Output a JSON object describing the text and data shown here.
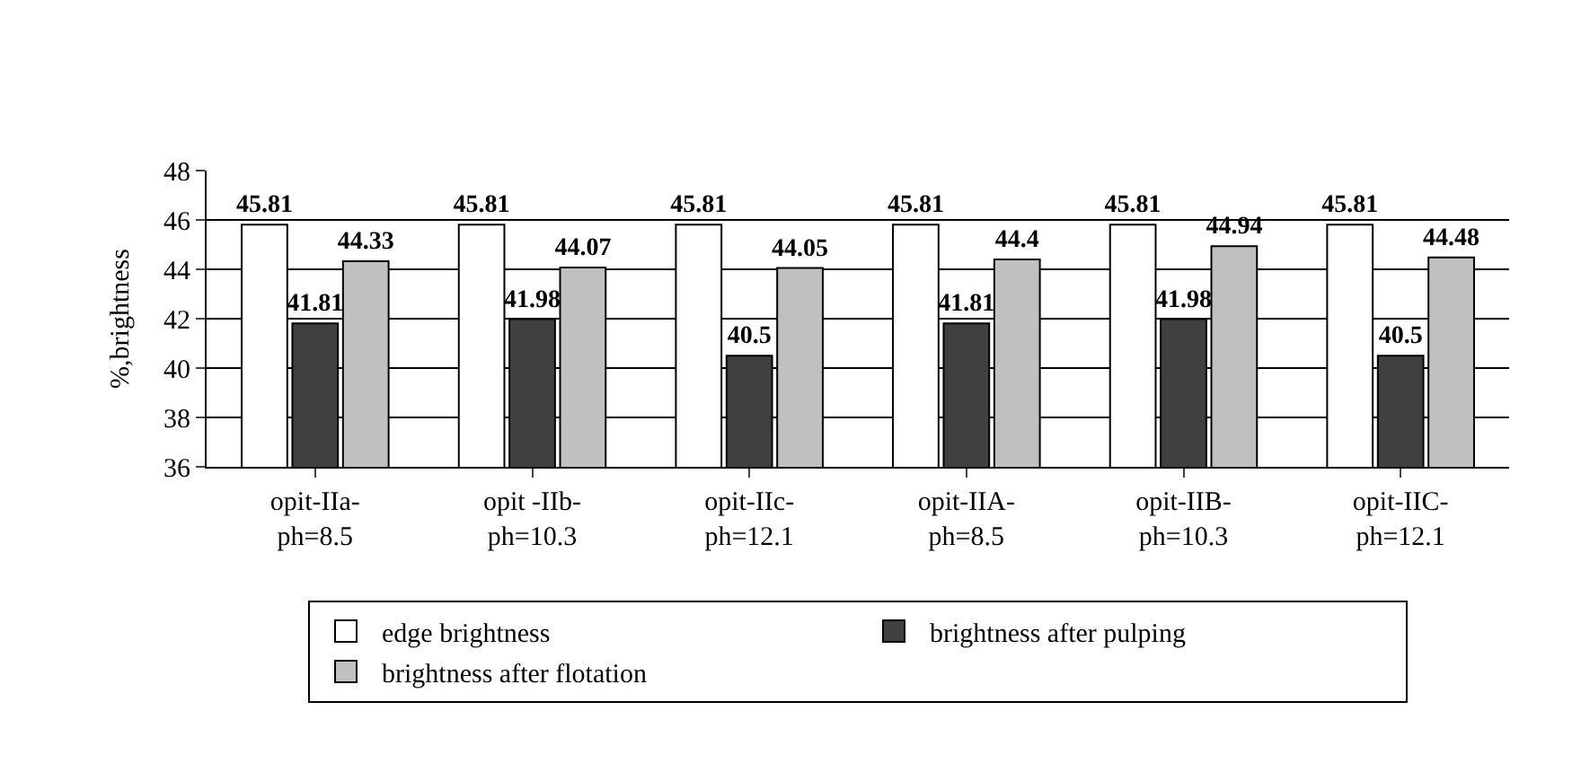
{
  "chart_data": {
    "type": "bar",
    "ylabel": "%,brightness",
    "categories": [
      "opit-IIa-\nph=8.5",
      "opit -IIb-\nph=10.3",
      "opit-IIc-\nph=12.1",
      "opit-IIA-\nph=8.5",
      "opit-IIB-\nph=10.3",
      "opit-IIC-\nph=12.1"
    ],
    "series": [
      {
        "name": "edge brightness",
        "color": "#ffffff",
        "values": [
          45.81,
          45.81,
          45.81,
          45.81,
          45.81,
          45.81
        ]
      },
      {
        "name": "brightness after pulping",
        "color": "#404040",
        "values": [
          41.81,
          41.98,
          40.5,
          41.81,
          41.98,
          40.5
        ]
      },
      {
        "name": "brightness after flotation",
        "color": "#c0c0c0",
        "values": [
          44.33,
          44.07,
          44.05,
          44.4,
          44.94,
          44.48
        ]
      }
    ],
    "ylim": [
      36,
      48
    ],
    "yticks": [
      36,
      38,
      40,
      42,
      44,
      46,
      48
    ],
    "grid": "y",
    "legend": "bottom",
    "data_labels": true
  }
}
